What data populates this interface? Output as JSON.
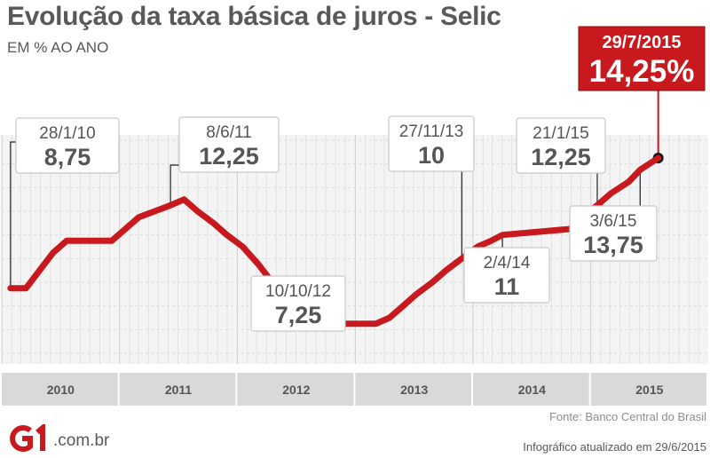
{
  "header": {
    "title": "Evolução da taxa básica de juros - Selic",
    "subtitle": "EM % AO ANO"
  },
  "footer": {
    "source": "Fonte: Banco Central do Brasil",
    "updated": "Infográfico atualizado em 29/6/2015",
    "logo_domain": ".com.br"
  },
  "colors": {
    "line": "#c8191e",
    "callout_border": "#3a3a3a",
    "highlight_bg": "#c8191e"
  },
  "chart_data": {
    "type": "line",
    "title": "Evolução da taxa básica de juros - Selic",
    "subtitle": "EM % AO ANO",
    "xlabel": "",
    "ylabel": "",
    "x_range": [
      "2010-01-01",
      "2015-12-31"
    ],
    "y_range": [
      6,
      15
    ],
    "grid": true,
    "categories": [
      "2010",
      "2011",
      "2012",
      "2013",
      "2014",
      "2015"
    ],
    "series": [
      {
        "points": [
          [
            "2010-01-28",
            8.75
          ],
          [
            "2010-03-17",
            8.75
          ],
          [
            "2010-04-28",
            9.5
          ],
          [
            "2010-06-09",
            10.25
          ],
          [
            "2010-07-21",
            10.75
          ],
          [
            "2010-12-08",
            10.75
          ],
          [
            "2011-01-19",
            11.25
          ],
          [
            "2011-03-02",
            11.75
          ],
          [
            "2011-04-20",
            12.0
          ],
          [
            "2011-06-08",
            12.25
          ],
          [
            "2011-07-20",
            12.5
          ],
          [
            "2011-08-31",
            12.0
          ],
          [
            "2011-10-19",
            11.5
          ],
          [
            "2011-11-30",
            11.0
          ],
          [
            "2012-01-18",
            10.5
          ],
          [
            "2012-03-07",
            9.75
          ],
          [
            "2012-04-18",
            9.0
          ],
          [
            "2012-05-30",
            8.5
          ],
          [
            "2012-07-11",
            8.0
          ],
          [
            "2012-08-29",
            7.5
          ],
          [
            "2012-10-10",
            7.25
          ],
          [
            "2013-03-06",
            7.25
          ],
          [
            "2013-04-17",
            7.5
          ],
          [
            "2013-05-29",
            8.0
          ],
          [
            "2013-07-10",
            8.5
          ],
          [
            "2013-08-28",
            9.0
          ],
          [
            "2013-10-09",
            9.5
          ],
          [
            "2013-11-27",
            10.0
          ],
          [
            "2014-01-15",
            10.5
          ],
          [
            "2014-02-26",
            10.75
          ],
          [
            "2014-04-02",
            11.0
          ],
          [
            "2014-10-29",
            11.25
          ],
          [
            "2014-12-03",
            11.75
          ],
          [
            "2015-01-21",
            12.25
          ],
          [
            "2015-03-04",
            12.75
          ],
          [
            "2015-04-29",
            13.25
          ],
          [
            "2015-06-03",
            13.75
          ],
          [
            "2015-07-29",
            14.25
          ]
        ]
      }
    ],
    "annotations": [
      {
        "date": "2010-01-28",
        "label": "28/1/10",
        "value": "8,75"
      },
      {
        "date": "2011-06-08",
        "label": "8/6/11",
        "value": "12,25"
      },
      {
        "date": "2012-10-10",
        "label": "10/10/12",
        "value": "7,25"
      },
      {
        "date": "2013-11-27",
        "label": "27/11/13",
        "value": "10"
      },
      {
        "date": "2014-04-02",
        "label": "2/4/14",
        "value": "11"
      },
      {
        "date": "2015-01-21",
        "label": "21/1/15",
        "value": "12,25"
      },
      {
        "date": "2015-06-03",
        "label": "3/6/15",
        "value": "13,75"
      },
      {
        "date": "2015-07-29",
        "label": "29/7/2015",
        "value": "14,25%",
        "highlight": true
      }
    ]
  }
}
